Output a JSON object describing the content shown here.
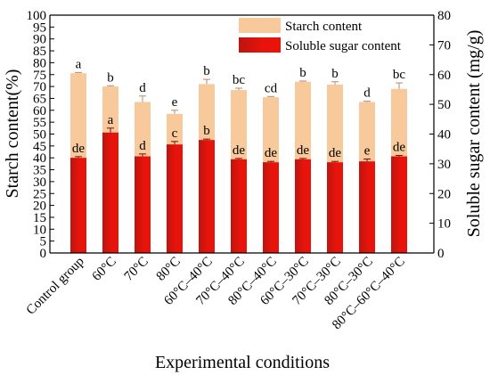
{
  "chart_data": {
    "type": "bar",
    "xlabel": "Experimental conditions",
    "ylabel_left": "Starch content(%)",
    "ylabel_right": "Soluble sugar content (mg/g)",
    "ylim_left": [
      0,
      100
    ],
    "ylim_right": [
      0,
      80
    ],
    "yticks_left": [
      "0",
      "5",
      "10",
      "15",
      "20",
      "25",
      "30",
      "35",
      "40",
      "45",
      "50",
      "55",
      "60",
      "65",
      "70",
      "75",
      "80",
      "85",
      "90",
      "95",
      "100"
    ],
    "yticks_right": [
      "0",
      "10",
      "20",
      "30",
      "40",
      "50",
      "60",
      "70",
      "80"
    ],
    "grid": false,
    "legend_position": "top-right",
    "categories": [
      "Control group",
      "60°C",
      "70°C",
      "80°C",
      "60°C–40°C",
      "70°C–40°C",
      "80°C–40°C",
      "60°C–30°C",
      "70°C–30°C",
      "80°C–30°C",
      "80°C–60°C–40°C"
    ],
    "series": [
      {
        "name": "Starch content",
        "axis": "left",
        "color": "#f7c99b",
        "values": [
          75.6,
          70.0,
          63.5,
          58.5,
          71.0,
          68.5,
          65.5,
          72.0,
          70.8,
          63.5,
          69.0
        ],
        "errors": [
          0.3,
          0.3,
          2.5,
          1.5,
          2.0,
          0.8,
          0.3,
          0.3,
          1.2,
          0.3,
          2.5
        ],
        "letters": [
          "a",
          "b",
          "d",
          "e",
          "b",
          "bc",
          "cd",
          "b",
          "b",
          "d",
          "bc"
        ]
      },
      {
        "name": "Soluble sugar content",
        "axis": "right",
        "color": "#e8140c",
        "values": [
          32.0,
          40.5,
          32.5,
          36.5,
          38.0,
          31.5,
          30.5,
          31.5,
          30.5,
          30.8,
          32.5
        ],
        "errors": [
          0.4,
          1.5,
          0.8,
          1.0,
          0.3,
          0.3,
          0.3,
          0.3,
          0.3,
          0.8,
          0.3
        ],
        "letters": [
          "de",
          "a",
          "d",
          "c",
          "b",
          "de",
          "de",
          "de",
          "de",
          "e",
          "de"
        ]
      }
    ]
  }
}
